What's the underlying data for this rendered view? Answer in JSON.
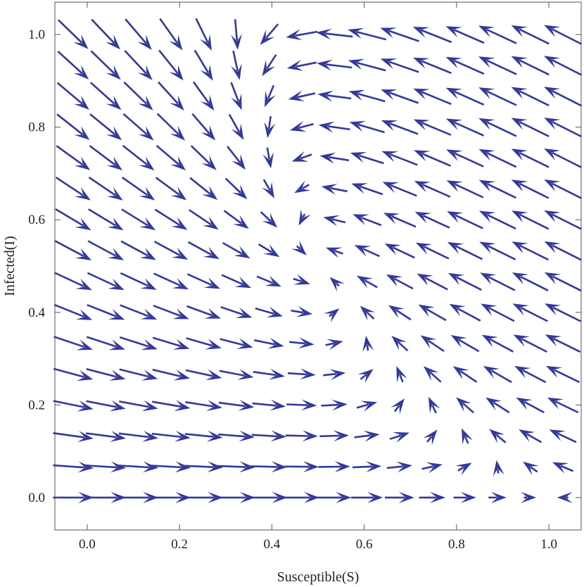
{
  "chart_data": {
    "type": "vector-field",
    "title": "",
    "xlabel": "Susceptible(S)",
    "ylabel": "Infected(I)",
    "xlim": [
      -0.07,
      1.07
    ],
    "ylim": [
      -0.07,
      1.07
    ],
    "x_ticks": [
      "0.0",
      "0.2",
      "0.4",
      "0.6",
      "0.8",
      "1.0"
    ],
    "y_ticks": [
      "0.0",
      "0.2",
      "0.4",
      "0.6",
      "0.8",
      "1.0"
    ],
    "grid": false,
    "legend": "none",
    "arrow_color": "#33399b",
    "field": {
      "equations": {
        "dS": "1 - S - 2*S*I",
        "dI": "2*S*I - I"
      },
      "x_range": [
        -0.03,
        1.03
      ],
      "y_range": [
        0.0,
        1.0
      ],
      "grid": [
        16,
        16
      ]
    }
  }
}
